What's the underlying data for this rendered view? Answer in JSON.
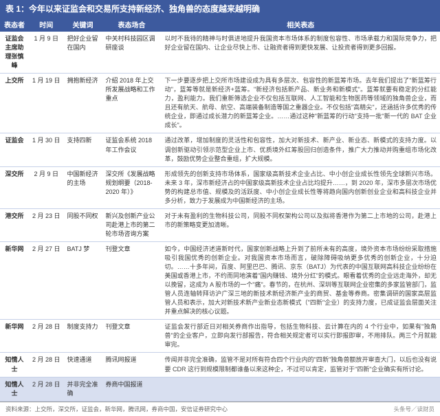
{
  "title": "表 1：今年以来证监会和交易所支持新经济、独角兽的态度越来越明确",
  "columns": [
    "表态者",
    "时间",
    "关键词",
    "表态场合",
    "相关表态"
  ],
  "rows": [
    {
      "c1": "证监会主席助理张慎峰",
      "c2": "1 月 9 日",
      "c3": "把好企业留在国内",
      "c4": "中关村科技园区调研座谈",
      "c5": "以时不我待的精神与时俱进地提升我国资本市场体系的制度包容性、市场承载力和国际竞争力，把好企业留在国内、让企业尽快上市、让融资者得到更快发展、让投资者得到更多回报。"
    },
    {
      "c1": "上交所",
      "c2": "1 月 19 日",
      "c3": "拥抱新经济",
      "c4": "介绍 2018 年上交所发展战略和工作重点",
      "c5": "下一步要逐步把上交所市场建设成为具有多层次、包容性的新蓝筹市场。去年我们提出了\"新蓝筹行动\"，蓝筹等就是新经济+蓝筹。\"新经济包括新产品、新业务和新模式\"。蓝筹就要有稳定的分红能力，盈利能力。我们重新筛选企业不仅包括互联网、人工智能和生物医药等领域的独角兽企业，而且还有航天、航母、航空、高端装备制造等国之重器企业。不仅包括\"高精尖\"，还涵括许多优秀的传统企业，即通过成长潜力的新蓝筹企业。……通过这种\"新蓝筹的行动\"支持一批\"新一代的 BAT 企业成长\"。"
    },
    {
      "c1": "证监会",
      "c2": "1 月 30 日",
      "c3": "支持四新",
      "c4": "证监会系统 2018 年工作会议",
      "c5": "通过改革，增加制度的灵活性和包容性，加大对新技术、新产业、新业态、新模式的支持力度。以调创新驱动引领示范型企业上市、优质境外红筹股回归创造条件，推广大力推动并购重组市场化改革，鼓励优势企业整合重组，扩大规模。"
    },
    {
      "c1": "深交所",
      "c2": "2 月 9 日",
      "c3": "中国新经济的主场",
      "c4": "深交所《发展战略规划纲要（2018-2020 年）》",
      "c5": "形成领先的创新支持市场体系，国家级高新技术企业占比、中小创企业成长性领先全球新兴市场。未来 3 年，深市新经济占的中国家级高新技术企业占比均提升……，到 2020 年，深市多层次市场优势的构建总市值、规模及的活跃度、中小创企业成长性等将趋向国内创新创业企业和高科技企业并多分析，致力于发展成为中国新经济的主场。"
    },
    {
      "c1": "港交所",
      "c2": "2 月 23 日",
      "c3": "同股不同权",
      "c4": "新兴及创新产业公司赴港上市的第二轮市场咨询方案",
      "c5": "对于未有盈利的生物科技公司，同股不同权架构公司以及拟将香港作为第二上市地的公司，赴港上市的新策略变更加清晰。"
    },
    {
      "c1": "新华网",
      "c2": "2 月 27 日",
      "c3": "BATJ 梦",
      "c4": "刊登文章",
      "c5": "如今，中国经济述道新时代，国家创新战略上升到了前所未有的高度，境外资本市场纷纷采取措施吸引我国优秀的创新企业。对我国资本市场而言，破除障碍吸纳更多优秀的创新企业，十分迫切。……十多年间，百度、阿里巴巴、腾讯、京东（BATJ）为代表的中国互联网高科技企业纷纷在美国或香港上市，不约而同地演着\"国内赚钱、境外分红\"的模式。眼看着优秀的企业远走海外，却无以挽留，这成为 A 股市场的一个\"痛\"。春节的，在杭州、深圳等互联网企业密集的多家监管部门，监管人员连轴转拜访沪广深三地的新技术新经济新产业的商贸、基金等券商。密集调研的国家高层监管人员和表示，加大对新技术新产业新业态新模式（\"四新\"企业）的支持力度，已成证监会层面关注并重点解决的核心议题。"
    },
    {
      "c1": "新华网",
      "c2": "2 月 28 日",
      "c3": "制度支持力",
      "c4": "刊登文章",
      "c5": "证监会发行部近日对相关券商作出指导，包括生物科技、云计算在内的 4 个行业中，如果有\"独角兽\"的企业客户，立即向发行部报告，符合相关规定者可以实行即报即审，不用排队。两三个月就能审完。"
    },
    {
      "c1": "知情人士",
      "c2": "2 月 28 日",
      "c3": "快速通道",
      "c4": "腾讯网报道",
      "c5": "传闻并非完全准确，监管不是对所有符合四个行业内的\"四新\"独角兽额放开审查大门，以后也没有说要 CDR 这行到规模限制都谁备以来这种企，不过可以肯定，监管对于\"四新\"企业确实有所讨论。"
    },
    {
      "c1": "知情人士",
      "c2": "2 月 28 日",
      "c3": "并非完全准确",
      "c4": "券商中国报道",
      "c5": "",
      "highlight": true
    }
  ],
  "footer_left": "资料来源：上交所，深交所，证监会，新华网，腾讯网，券商中国，安信证券研究中心",
  "footer_right": "头条号／读财员"
}
